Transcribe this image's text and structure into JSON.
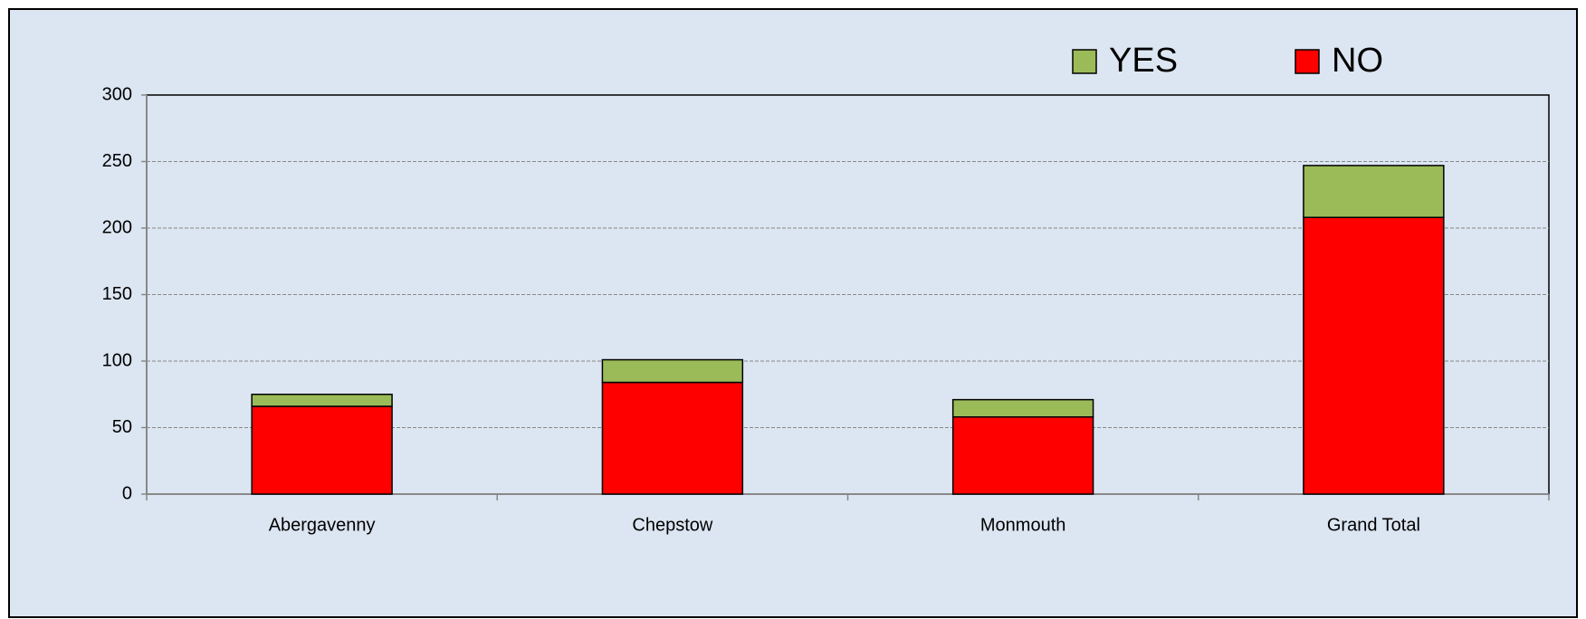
{
  "chart_data": {
    "type": "stacked_bar",
    "categories": [
      "Abergavenny",
      "Chepstow",
      "Monmouth",
      "Grand Total"
    ],
    "series": [
      {
        "name": "NO",
        "color": "#ff0000",
        "values": [
          66,
          84,
          58,
          208
        ]
      },
      {
        "name": "YES",
        "color": "#9bbb59",
        "values": [
          9,
          17,
          13,
          39
        ]
      }
    ],
    "ylim": [
      0,
      300
    ],
    "yticks": [
      0,
      50,
      100,
      150,
      200,
      250,
      300
    ],
    "grid": true,
    "legend": "top"
  }
}
